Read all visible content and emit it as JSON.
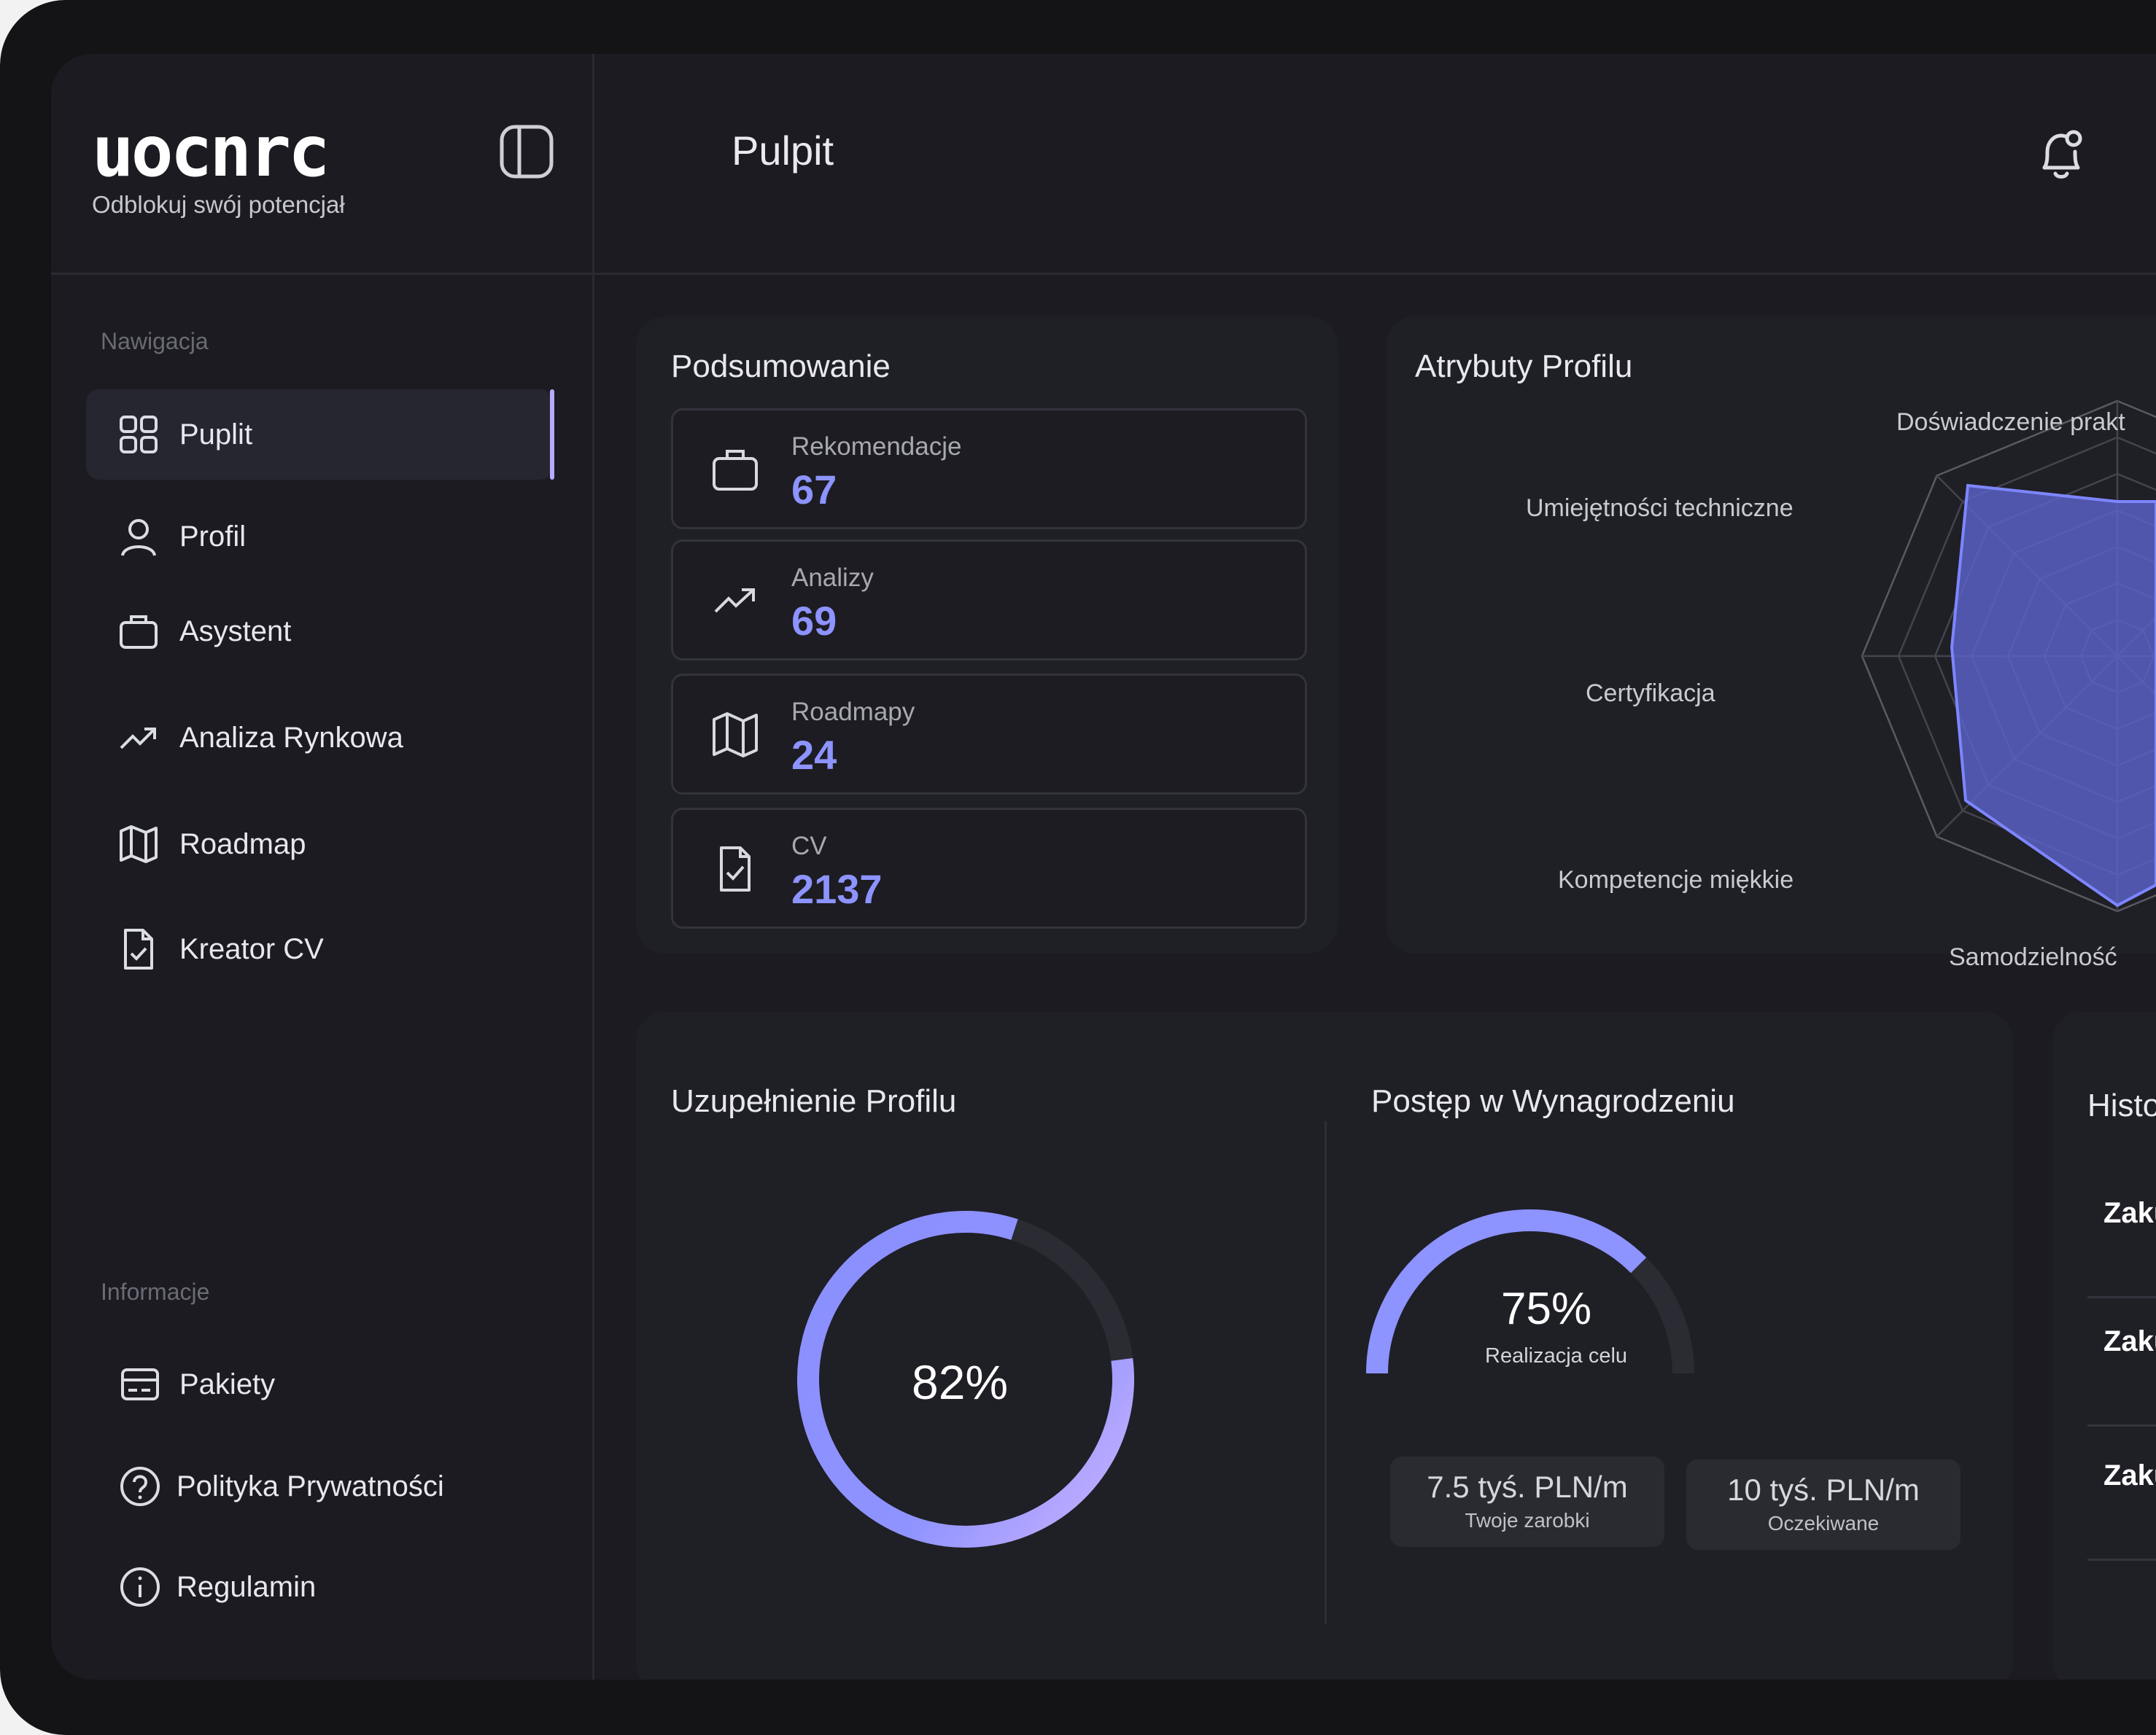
{
  "brand": {
    "logo": "uocnrc",
    "tagline": "Odblokuj swój potencjał"
  },
  "sidebar": {
    "nav_heading": "Nawigacja",
    "items": [
      {
        "label": "Puplit",
        "icon": "grid-icon",
        "active": true
      },
      {
        "label": "Profil",
        "icon": "user-icon"
      },
      {
        "label": "Asystent",
        "icon": "briefcase-icon"
      },
      {
        "label": "Analiza Rynkowa",
        "icon": "trend-up-icon"
      },
      {
        "label": "Roadmap",
        "icon": "map-icon"
      },
      {
        "label": "Kreator CV",
        "icon": "file-check-icon"
      }
    ],
    "info_heading": "Informacje",
    "info_items": [
      {
        "label": "Pakiety",
        "icon": "card-icon"
      },
      {
        "label": "Polityka Prywatności",
        "icon": "help-circle-icon"
      },
      {
        "label": "Regulamin",
        "icon": "info-circle-icon"
      }
    ]
  },
  "header": {
    "title": "Pulpit"
  },
  "summary": {
    "title": "Podsumowanie",
    "stats": [
      {
        "label": "Rekomendacje",
        "value": "67",
        "icon": "briefcase-icon"
      },
      {
        "label": "Analizy",
        "value": "69",
        "icon": "trend-up-icon"
      },
      {
        "label": "Roadmapy",
        "value": "24",
        "icon": "map-icon"
      },
      {
        "label": "CV",
        "value": "2137",
        "icon": "file-check-icon"
      }
    ]
  },
  "attributes": {
    "title": "Atrybuty Profilu",
    "labels": {
      "a0": "Doświadczenie prakt",
      "a1": "Umiejętności techniczne",
      "a2": "Certyfikacja",
      "a3": "Kompetencje miękkie",
      "a4": "Samodzielność"
    }
  },
  "profile_completion": {
    "title": "Uzupełnienie Profilu",
    "value_text": "82%",
    "value": 0.82
  },
  "salary": {
    "title": "Postęp w Wynagrodzeniu",
    "value_text": "75%",
    "caption": "Realizacja celu",
    "value": 0.75,
    "earnings_value": "7.5 tyś. PLN/m",
    "earnings_label": "Twoje zarobki",
    "expected_value": "10 tyś. PLN/m",
    "expected_label": "Oczekiwane"
  },
  "history": {
    "title": "Histo",
    "items": [
      "Zaku",
      "Zaku",
      "Zaku"
    ]
  },
  "colors": {
    "accent": "#8d93ff",
    "accent_light": "#c4b0ff",
    "track": "#2b2b33",
    "radar_fill": "#5b63c9"
  }
}
